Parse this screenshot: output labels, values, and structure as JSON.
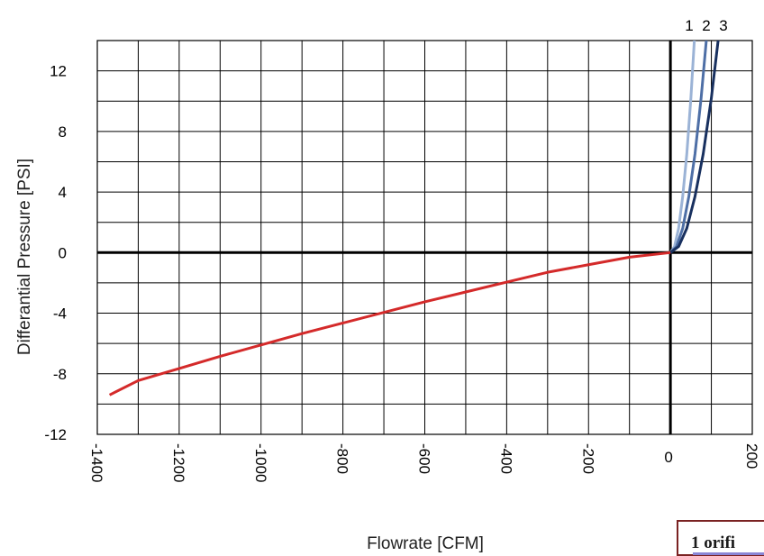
{
  "chart_data": {
    "type": "line",
    "xlabel": "Flowrate  [CFM]",
    "ylabel": "Differantial Pressure [PSI]",
    "xlim": [
      -1400,
      200
    ],
    "ylim": [
      -12,
      14
    ],
    "x_ticks": [
      -1400,
      -1200,
      -1000,
      -800,
      -600,
      -400,
      -200,
      0,
      200
    ],
    "x_tick_labels": [
      "-1400",
      "-1200",
      "-1000",
      "-800",
      "-600",
      "-400",
      "-200",
      "0",
      "200"
    ],
    "y_ticks": [
      12,
      8,
      4,
      0,
      -4,
      -8,
      -12
    ],
    "y_tick_labels": [
      "12",
      "8",
      "4",
      "0",
      "-4",
      "-8",
      "-12"
    ],
    "grid": true,
    "series": [
      {
        "name": "1",
        "color": "#9bb3d6",
        "x": [
          0,
          10,
          20,
          30,
          40,
          50,
          60,
          69
        ],
        "y": [
          0,
          0.4,
          1.6,
          3.7,
          6.5,
          10.2,
          14.7,
          19.5
        ]
      },
      {
        "name": "2",
        "color": "#4e6fa6",
        "x": [
          0,
          15,
          30,
          45,
          60,
          75,
          93
        ],
        "y": [
          0,
          0.4,
          1.6,
          3.7,
          6.5,
          10.2,
          15.6
        ]
      },
      {
        "name": "3",
        "color": "#18305f",
        "x": [
          0,
          20,
          40,
          60,
          80,
          100,
          127
        ],
        "y": [
          0,
          0.4,
          1.6,
          3.7,
          6.5,
          10.2,
          16.4
        ]
      },
      {
        "color": "#d42a2a",
        "x": [
          0,
          -100,
          -200,
          -300,
          -400,
          -500,
          -600,
          -700,
          -800,
          -900,
          -1000,
          -1100,
          -1200,
          -1300,
          -1370
        ],
        "y": [
          0,
          -0.3,
          -0.8,
          -1.3,
          -1.95,
          -2.6,
          -3.25,
          -3.95,
          -4.65,
          -5.35,
          -6.1,
          -6.85,
          -7.65,
          -8.45,
          -9.4
        ]
      }
    ],
    "series_labels": [
      "1",
      "2",
      "3"
    ]
  },
  "legend": {
    "text": "1 orifi"
  }
}
